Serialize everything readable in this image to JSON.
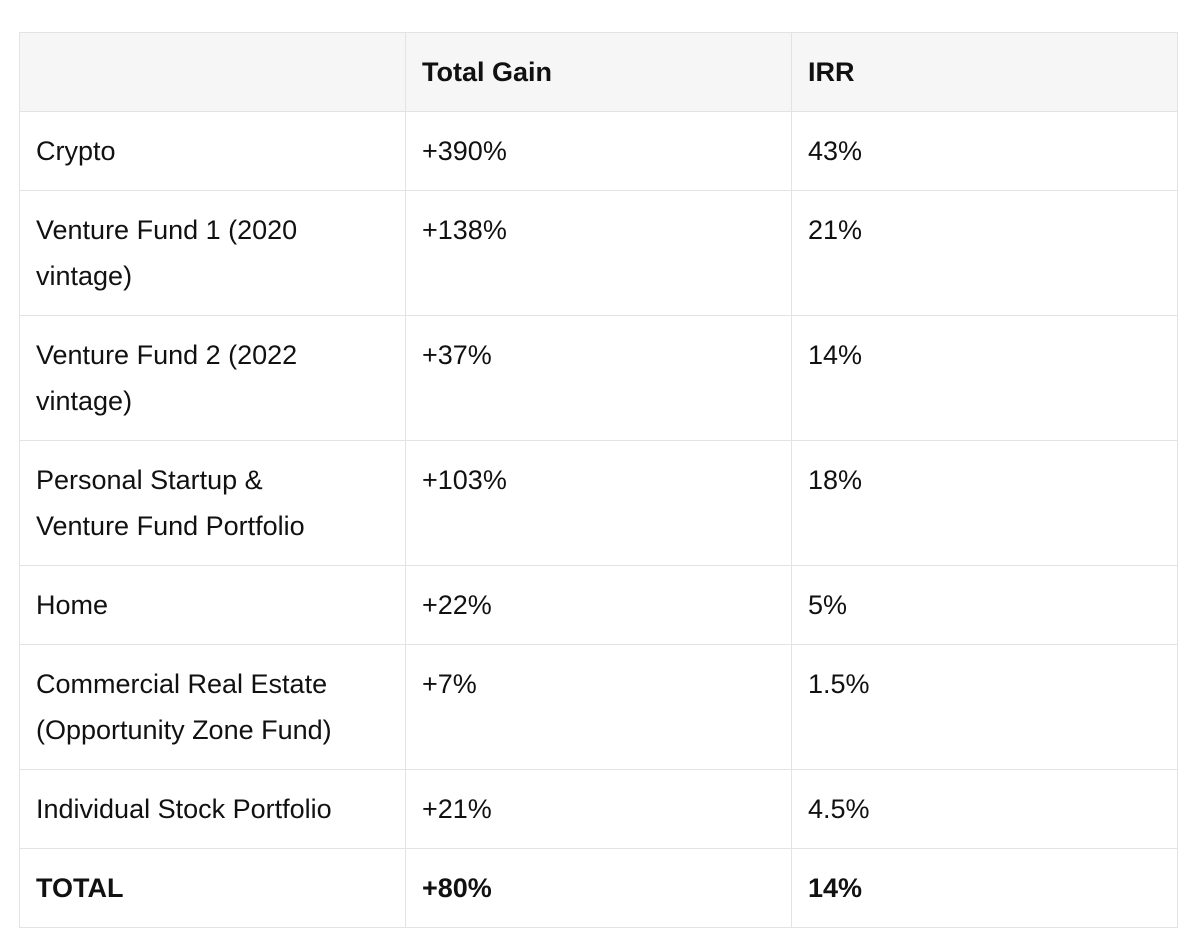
{
  "table": {
    "headers": [
      "",
      "Total Gain",
      "IRR"
    ],
    "rows": [
      {
        "label_lines": [
          "Crypto"
        ],
        "gain": "+390%",
        "irr": "43%"
      },
      {
        "label_lines": [
          "Venture Fund 1 (2020",
          "vintage)"
        ],
        "gain": "+138%",
        "irr": "21%"
      },
      {
        "label_lines": [
          "Venture Fund 2 (2022",
          "vintage)"
        ],
        "gain": "+37%",
        "irr": "14%"
      },
      {
        "label_lines": [
          "Personal Startup &",
          "Venture Fund Portfolio"
        ],
        "gain": "+103%",
        "irr": "18%"
      },
      {
        "label_lines": [
          "Home"
        ],
        "gain": "+22%",
        "irr": "5%"
      },
      {
        "label_lines": [
          "Commercial Real Estate",
          "(Opportunity Zone Fund)"
        ],
        "gain": "+7%",
        "irr": "1.5%"
      },
      {
        "label_lines": [
          "Individual Stock Portfolio"
        ],
        "gain": "+21%",
        "irr": "4.5%"
      }
    ],
    "total": {
      "label": "TOTAL",
      "gain": "+80%",
      "irr": "14%"
    }
  },
  "chart_data": {
    "type": "table",
    "columns": [
      "",
      "Total Gain",
      "IRR"
    ],
    "rows": [
      [
        "Crypto",
        "+390%",
        "43%"
      ],
      [
        "Venture Fund 1 (2020 vintage)",
        "+138%",
        "21%"
      ],
      [
        "Venture Fund 2 (2022 vintage)",
        "+37%",
        "14%"
      ],
      [
        "Personal Startup & Venture Fund Portfolio",
        "+103%",
        "18%"
      ],
      [
        "Home",
        "+22%",
        "5%"
      ],
      [
        "Commercial Real Estate (Opportunity Zone Fund)",
        "+7%",
        "1.5%"
      ],
      [
        "Individual Stock Portfolio",
        "+21%",
        "4.5%"
      ],
      [
        "TOTAL",
        "+80%",
        "14%"
      ]
    ]
  }
}
